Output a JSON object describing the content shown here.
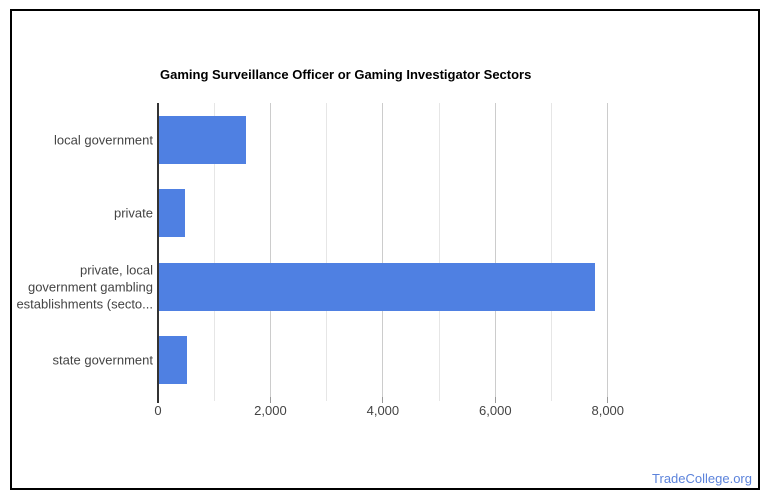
{
  "footer": {
    "text": "TradeCollege.org"
  },
  "chart_data": {
    "type": "bar",
    "orientation": "horizontal",
    "title": "Gaming Surveillance Officer or Gaming Investigator Sectors",
    "xlabel": "",
    "ylabel": "",
    "categories": [
      "local government",
      "private",
      "private, local government gambling establishments (secto...",
      "state government"
    ],
    "category_display_lines": [
      [
        "local government"
      ],
      [
        "private"
      ],
      [
        "private, local",
        "government gambling",
        "establishments (secto..."
      ],
      [
        "state government"
      ]
    ],
    "values": [
      1550,
      460,
      7750,
      490
    ],
    "xlim": [
      0,
      8040
    ],
    "x_tick_values": [
      0,
      2000,
      4000,
      6000,
      8000
    ],
    "x_tick_labels": [
      "0",
      "2,000",
      "4,000",
      "6,000",
      "8,000"
    ],
    "gridline_interval": 1000,
    "grid": true,
    "legend": "none",
    "bar_color": "#4f80e2"
  },
  "colors": {
    "bar": "#4f80e2",
    "gridline_minor": "#e6e6e6",
    "gridline_major": "#cccccc",
    "baseline": "#333333",
    "axis_label": "#444444",
    "title": "#000000",
    "footer_link": "#5c83db",
    "frame_border": "#000000",
    "background": "#ffffff"
  }
}
